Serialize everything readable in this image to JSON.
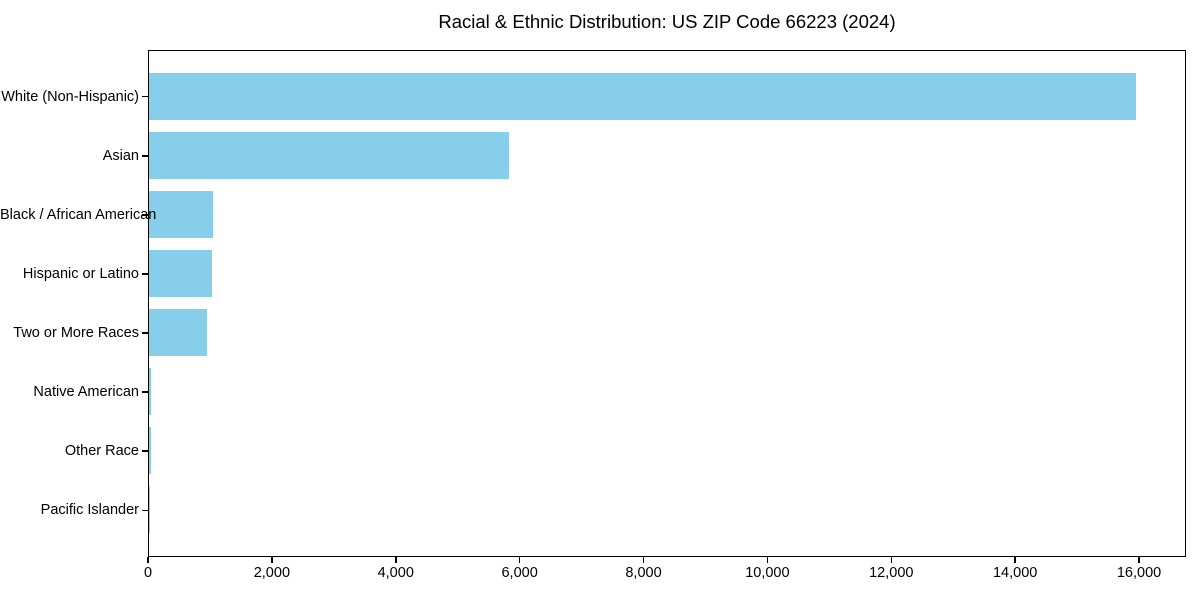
{
  "chart_data": {
    "type": "bar",
    "orientation": "horizontal",
    "title": "Racial & Ethnic Distribution: US ZIP Code 66223 (2024)",
    "categories": [
      "White (Non-Hispanic)",
      "Asian",
      "Black / African American",
      "Hispanic or Latino",
      "Two or More Races",
      "Native American",
      "Other Race",
      "Pacific Islander"
    ],
    "values": [
      15960,
      5830,
      1030,
      1020,
      940,
      40,
      30,
      15
    ],
    "xlabel": "",
    "ylabel": "",
    "xlim": [
      0,
      16758
    ],
    "xticks": [
      0,
      2000,
      4000,
      6000,
      8000,
      10000,
      12000,
      14000,
      16000
    ],
    "xtick_labels": [
      "0",
      "2,000",
      "4,000",
      "6,000",
      "8,000",
      "10,000",
      "12,000",
      "14,000",
      "16,000"
    ],
    "bar_color": "#87CEEB",
    "spine_color": "#000000",
    "text_color": "#000000",
    "background_color": "#ffffff",
    "grid": false,
    "legend": null
  }
}
